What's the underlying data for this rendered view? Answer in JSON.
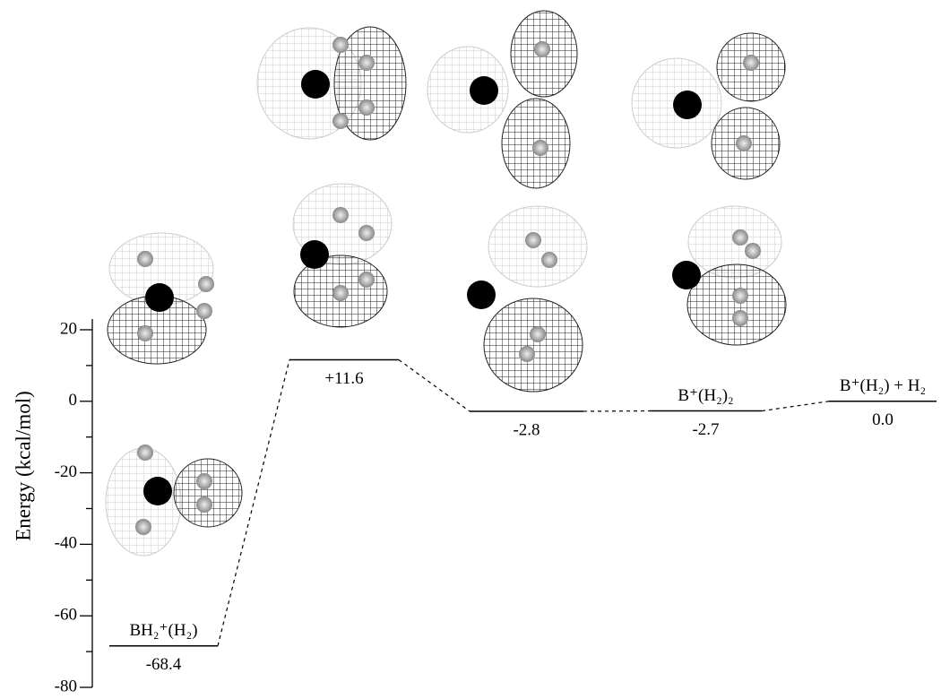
{
  "chart_data": {
    "type": "energy-level",
    "y_label": "Energy (kcal/mol)",
    "ylim": [
      -80,
      23
    ],
    "yticks": [
      20,
      0,
      -20,
      -40,
      -60,
      -80
    ],
    "minor_yticks": [
      10,
      -10,
      -30,
      -50,
      -70
    ],
    "species": [
      "BH₂⁺(H₂)",
      null,
      null,
      "B⁺(H₂)₂",
      "B⁺(H₂) + H₂"
    ],
    "values": [
      -68.4,
      11.6,
      -2.8,
      -2.7,
      0.0
    ],
    "value_labels": [
      "-68.4",
      "+11.6",
      "-2.8",
      "-2.7",
      "0.0"
    ],
    "color": "#000000"
  }
}
